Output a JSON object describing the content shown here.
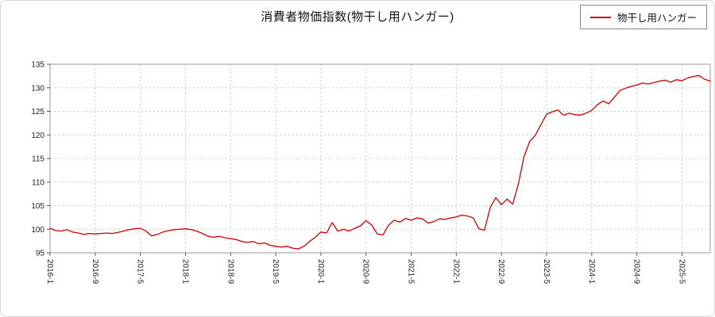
{
  "chart_data": {
    "type": "line",
    "title": "消費者物価指数(物干し用ハンガー)",
    "xlabel": "",
    "ylabel": "",
    "ylim": [
      95,
      135
    ],
    "yticks": [
      95,
      100,
      105,
      110,
      115,
      120,
      125,
      130,
      135
    ],
    "grid": true,
    "legend_position": "top-right",
    "x_start": "2016-1",
    "x_end": "2025-10",
    "x_tick_labels": [
      "2016-1",
      "2016-9",
      "2017-5",
      "2018-1",
      "2018-9",
      "2019-5",
      "2020-1",
      "2020-9",
      "2021-5",
      "2022-1",
      "2022-9",
      "2023-5",
      "2024-1",
      "2024-9",
      "2025-5"
    ],
    "x_tick_indices": [
      0,
      8,
      16,
      24,
      32,
      40,
      48,
      56,
      64,
      72,
      80,
      88,
      96,
      104,
      112
    ],
    "series": [
      {
        "name": "物干し用ハンガー",
        "color": "#cc0000",
        "values": [
          100.2,
          99.7,
          99.6,
          99.9,
          99.4,
          99.2,
          98.9,
          99.1,
          99.0,
          99.1,
          99.2,
          99.1,
          99.3,
          99.6,
          99.9,
          100.1,
          100.2,
          99.6,
          98.6,
          98.9,
          99.4,
          99.7,
          99.9,
          100.0,
          100.1,
          99.9,
          99.6,
          99.1,
          98.5,
          98.3,
          98.5,
          98.2,
          98.0,
          97.8,
          97.4,
          97.2,
          97.4,
          96.9,
          97.1,
          96.6,
          96.4,
          96.2,
          96.4,
          96.0,
          95.8,
          96.4,
          97.4,
          98.3,
          99.4,
          99.2,
          101.4,
          99.6,
          100.0,
          99.6,
          100.2,
          100.7,
          101.8,
          100.9,
          99.0,
          98.8,
          100.9,
          101.9,
          101.5,
          102.3,
          101.9,
          102.4,
          102.2,
          101.3,
          101.6,
          102.2,
          102.1,
          102.4,
          102.6,
          103.0,
          102.8,
          102.4,
          100.1,
          99.8,
          104.6,
          106.7,
          105.2,
          106.4,
          105.3,
          109.6,
          115.4,
          118.6,
          119.9,
          122.2,
          124.4,
          124.9,
          125.3,
          124.2,
          124.6,
          124.3,
          124.2,
          124.6,
          125.2,
          126.4,
          127.2,
          126.6,
          128.0,
          129.4,
          129.9,
          130.3,
          130.6,
          131.0,
          130.8,
          131.1,
          131.4,
          131.6,
          131.2,
          131.7,
          131.5,
          132.1,
          132.4,
          132.6,
          131.8,
          131.4
        ]
      }
    ]
  }
}
